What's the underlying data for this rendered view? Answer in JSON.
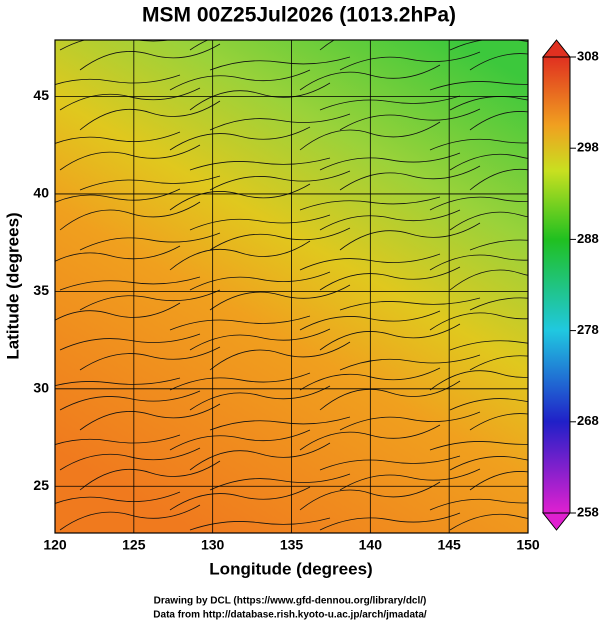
{
  "chart_data": {
    "type": "map",
    "title": "MSM 00Z25Jul2026 (1013.2hPa)",
    "xlabel": "Longitude (degrees)",
    "ylabel": "Latitude  (degrees)",
    "xlim": [
      120,
      150
    ],
    "ylim": [
      22.6,
      47.9
    ],
    "xticks": [
      120,
      125,
      130,
      135,
      140,
      145,
      150
    ],
    "yticks": [
      25,
      30,
      35,
      40,
      45
    ],
    "grid": true,
    "colorbar": {
      "lim": [
        258,
        308
      ],
      "ticks": [
        258,
        268,
        278,
        288,
        298,
        308
      ]
    },
    "credits": [
      "Drawing by DCL (https://www.gfd-dennou.org/library/dcl/)",
      "Data from http://database.rish.kyoto-u.ac.jp/arch/jmadata/"
    ]
  }
}
